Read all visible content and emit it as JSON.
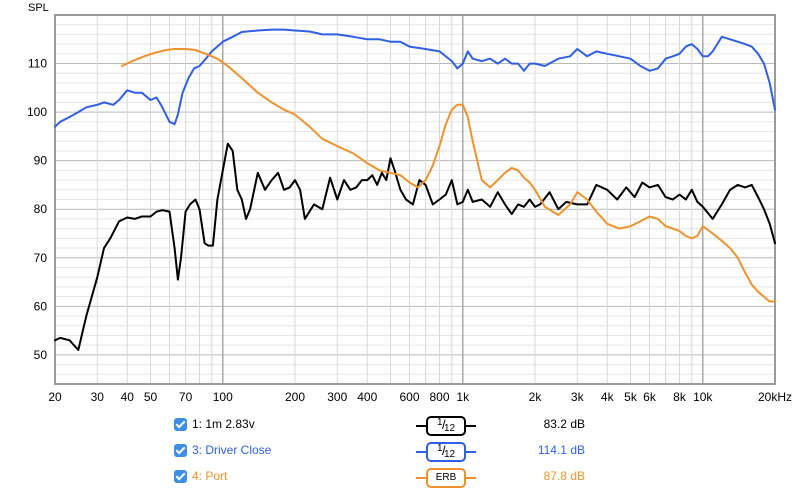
{
  "chart_data": {
    "type": "line",
    "ylabel": "SPL",
    "xscale": "log",
    "xlim": [
      20,
      20000
    ],
    "ylim": [
      44,
      120
    ],
    "grid": true,
    "x_ticks": [
      20,
      30,
      40,
      50,
      60,
      70,
      80,
      90,
      100,
      200,
      300,
      400,
      500,
      600,
      700,
      800,
      900,
      1000,
      2000,
      3000,
      4000,
      5000,
      6000,
      7000,
      8000,
      9000,
      10000,
      20000
    ],
    "x_tick_labels": [
      {
        "x": 20,
        "label": "20"
      },
      {
        "x": 30,
        "label": "30"
      },
      {
        "x": 40,
        "label": "40"
      },
      {
        "x": 50,
        "label": "50"
      },
      {
        "x": 70,
        "label": "70"
      },
      {
        "x": 100,
        "label": "100"
      },
      {
        "x": 200,
        "label": "200"
      },
      {
        "x": 300,
        "label": "300"
      },
      {
        "x": 400,
        "label": "400"
      },
      {
        "x": 600,
        "label": "600"
      },
      {
        "x": 800,
        "label": "800"
      },
      {
        "x": 1000,
        "label": "1k"
      },
      {
        "x": 2000,
        "label": "2k"
      },
      {
        "x": 3000,
        "label": "3k"
      },
      {
        "x": 4000,
        "label": "4k"
      },
      {
        "x": 5000,
        "label": "5k"
      },
      {
        "x": 6000,
        "label": "6k"
      },
      {
        "x": 8000,
        "label": "8k"
      },
      {
        "x": 10000,
        "label": "10k"
      },
      {
        "x": 20000,
        "label": "20kHz"
      }
    ],
    "y_tick_labels": [
      {
        "y": 50,
        "label": "50"
      },
      {
        "y": 60,
        "label": "60"
      },
      {
        "y": 70,
        "label": "70"
      },
      {
        "y": 80,
        "label": "80"
      },
      {
        "y": 90,
        "label": "90"
      },
      {
        "y": 100,
        "label": "100"
      },
      {
        "y": 110,
        "label": "110"
      }
    ],
    "series": [
      {
        "name": "1: 1m 2.83v",
        "color": "#000000",
        "smoothing": "1/12",
        "value": "83.2 dB",
        "x": [
          20,
          21,
          23,
          25,
          27,
          30,
          32,
          34,
          37,
          40,
          43,
          46,
          50,
          53,
          56,
          60,
          63,
          65,
          67,
          70,
          73,
          77,
          80,
          84,
          87,
          91,
          95,
          100,
          105,
          110,
          115,
          120,
          125,
          130,
          140,
          150,
          160,
          170,
          180,
          190,
          200,
          210,
          220,
          240,
          260,
          280,
          300,
          320,
          340,
          360,
          380,
          400,
          420,
          440,
          460,
          480,
          500,
          520,
          550,
          580,
          620,
          660,
          700,
          750,
          800,
          850,
          900,
          950,
          1000,
          1050,
          1100,
          1200,
          1300,
          1400,
          1500,
          1600,
          1700,
          1800,
          1900,
          2000,
          2100,
          2300,
          2500,
          2700,
          3000,
          3300,
          3600,
          4000,
          4400,
          4800,
          5200,
          5600,
          6000,
          6500,
          7000,
          7500,
          8000,
          8500,
          9000,
          9500,
          10000,
          11000,
          12000,
          13000,
          14000,
          15000,
          16000,
          17000,
          18000,
          19000,
          20000
        ],
        "y": [
          53,
          53.5,
          53,
          51,
          58,
          66,
          72,
          74,
          77.5,
          78.3,
          78,
          78.5,
          78.5,
          79.5,
          79.8,
          79.5,
          72,
          65.5,
          70,
          79.5,
          81,
          82,
          80,
          73,
          72.5,
          72.5,
          82,
          88,
          93.5,
          92,
          84,
          82,
          78,
          80,
          87.5,
          84,
          86,
          87.5,
          84,
          84.5,
          86,
          84,
          78,
          81,
          80,
          86.5,
          82,
          86,
          84,
          84.5,
          86,
          86,
          87,
          85,
          87.5,
          86,
          90.5,
          88,
          84,
          82,
          81,
          86,
          85,
          81,
          82,
          83,
          86,
          81,
          81.5,
          84,
          81.5,
          82,
          80.5,
          83.5,
          81,
          79,
          81,
          80.5,
          82,
          80.5,
          81,
          83.5,
          80,
          81.5,
          81,
          81,
          85,
          84,
          82,
          84.5,
          82.5,
          85.5,
          84.5,
          85,
          82.5,
          82,
          83,
          82,
          84,
          81.5,
          80.5,
          78,
          81,
          84,
          85,
          84.5,
          85,
          82.5,
          80,
          77,
          73
        ]
      },
      {
        "name": "3: Driver Close",
        "color": "#2f5fe4",
        "smoothing": "1/12",
        "value": "114.1 dB",
        "x": [
          20,
          21,
          23,
          25,
          27,
          30,
          32,
          35,
          37,
          40,
          43,
          46,
          50,
          53,
          56,
          60,
          63,
          65,
          68,
          72,
          76,
          80,
          85,
          90,
          100,
          110,
          120,
          140,
          160,
          180,
          200,
          230,
          260,
          300,
          350,
          400,
          450,
          500,
          550,
          600,
          700,
          800,
          900,
          950,
          1000,
          1050,
          1100,
          1200,
          1300,
          1400,
          1500,
          1600,
          1700,
          1800,
          1900,
          2000,
          2200,
          2500,
          2800,
          3000,
          3300,
          3600,
          4000,
          4500,
          5000,
          5500,
          6000,
          6500,
          7000,
          7500,
          8000,
          8500,
          9000,
          9500,
          10000,
          10500,
          11000,
          12000,
          13000,
          14000,
          15000,
          16000,
          17000,
          18000,
          19000,
          20000
        ],
        "y": [
          97,
          98,
          99,
          100,
          101,
          101.5,
          102,
          101.5,
          102.5,
          104.5,
          104,
          104,
          102.5,
          103,
          101,
          98,
          97.5,
          99.5,
          104,
          107,
          109,
          109.5,
          111,
          112.5,
          114.5,
          115.5,
          116.5,
          116.8,
          117,
          117,
          116.8,
          116.6,
          116,
          116,
          115.5,
          115,
          115,
          114.5,
          114.5,
          113.5,
          113,
          112.5,
          110.5,
          109,
          110,
          112.5,
          111,
          110.5,
          111,
          110,
          111,
          110,
          110,
          108.5,
          110,
          110,
          109.5,
          111,
          111.5,
          113,
          111.5,
          112.5,
          112,
          111.5,
          111,
          109.5,
          108.5,
          109,
          111,
          111.5,
          112,
          113.5,
          114,
          113,
          111.5,
          111.5,
          112.5,
          115.5,
          115,
          114.5,
          114,
          113.5,
          112,
          110,
          106,
          100.5
        ]
      },
      {
        "name": "4: Port",
        "color": "#f0922c",
        "smoothing": "ERB",
        "value": "87.8 dB",
        "x": [
          38,
          42,
          47,
          52,
          58,
          63,
          70,
          77,
          85,
          95,
          105,
          120,
          140,
          160,
          180,
          200,
          230,
          260,
          300,
          350,
          400,
          450,
          500,
          550,
          600,
          650,
          700,
          750,
          800,
          850,
          900,
          950,
          1000,
          1050,
          1100,
          1200,
          1300,
          1400,
          1500,
          1600,
          1700,
          1800,
          1900,
          2000,
          2200,
          2500,
          2800,
          3000,
          3300,
          3600,
          4000,
          4500,
          5000,
          5500,
          6000,
          6500,
          7000,
          7500,
          8000,
          8500,
          9000,
          9500,
          10000,
          11000,
          12000,
          13000,
          14000,
          15000,
          16000,
          17000,
          18000,
          19000,
          20000
        ],
        "y": [
          109.5,
          110.5,
          111.5,
          112.2,
          112.8,
          113,
          113,
          112.8,
          112,
          111,
          109.5,
          107,
          104,
          102,
          100.5,
          99.5,
          97,
          94.5,
          93,
          91.5,
          89.5,
          88,
          87.5,
          87,
          85.5,
          84.5,
          86,
          89,
          93,
          97.5,
          100.5,
          101.5,
          101.5,
          99,
          94,
          86,
          84.5,
          86,
          87.5,
          88.5,
          88,
          86.5,
          85.5,
          84,
          80.5,
          78.8,
          81,
          83.5,
          82,
          79.5,
          77,
          76,
          76.5,
          77.5,
          78.5,
          78,
          76.5,
          76,
          75.5,
          74.5,
          74,
          74.5,
          76.5,
          75,
          73.5,
          72,
          70,
          67,
          64.5,
          63,
          62,
          61,
          61
        ]
      }
    ]
  }
}
